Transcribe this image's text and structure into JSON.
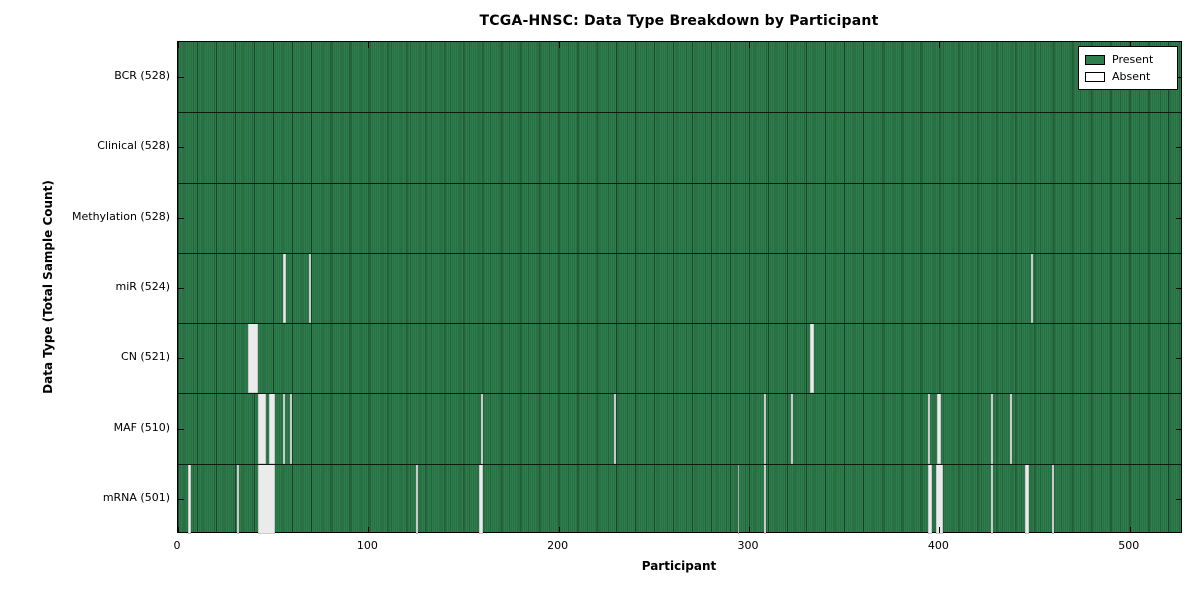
{
  "title": "TCGA-HNSC: Data Type Breakdown by Participant",
  "axes": {
    "xlabel": "Participant",
    "ylabel": "Data Type (Total Sample Count)"
  },
  "legend": {
    "items": [
      {
        "label": "Present",
        "swatch": "present"
      },
      {
        "label": "Absent",
        "swatch": "absent"
      }
    ],
    "position": "upper right"
  },
  "colors": {
    "present": "#2e7d4c",
    "absent": "#ebebeb",
    "cell_edge": "rgba(0,0,0,0.22)",
    "decade_edge": "rgba(0,0,0,0.38)",
    "separator": "#0d1a10"
  },
  "chart_data": {
    "type": "heatmap",
    "title": "TCGA-HNSC: Data Type Breakdown by Participant",
    "xlabel": "Participant",
    "ylabel": "Data Type (Total Sample Count)",
    "n_participants": 528,
    "xlim": [
      0,
      528
    ],
    "x_ticks": [
      0,
      100,
      200,
      300,
      400,
      500
    ],
    "grid": false,
    "legend_entries": [
      "Present",
      "Absent"
    ],
    "legend_position": "upper right",
    "value_encoding": {
      "present": 1,
      "absent": 0
    },
    "rows": [
      {
        "label": "BCR (528)",
        "name": "BCR",
        "total": 528,
        "absent_participants": []
      },
      {
        "label": "Clinical (528)",
        "name": "Clinical",
        "total": 528,
        "absent_participants": []
      },
      {
        "label": "Methylation (528)",
        "name": "Methylation",
        "total": 528,
        "absent_participants": []
      },
      {
        "label": "miR (524)",
        "name": "miR",
        "total": 524,
        "absent_participants": [
          55,
          56,
          69,
          448
        ]
      },
      {
        "label": "CN (521)",
        "name": "CN",
        "total": 521,
        "absent_participants": [
          37,
          38,
          39,
          40,
          41,
          332,
          333
        ]
      },
      {
        "label": "MAF (510)",
        "name": "MAF",
        "total": 510,
        "absent_participants": [
          42,
          43,
          44,
          45,
          48,
          49,
          50,
          55,
          59,
          159,
          229,
          308,
          322,
          394,
          399,
          400,
          427,
          437
        ]
      },
      {
        "label": "mRNA (501)",
        "name": "mRNA",
        "total": 501,
        "absent_participants": [
          5,
          6,
          31,
          42,
          43,
          44,
          45,
          46,
          47,
          48,
          49,
          50,
          125,
          158,
          159,
          294,
          308,
          394,
          395,
          398,
          399,
          400,
          401,
          427,
          445,
          446,
          459
        ]
      }
    ]
  }
}
